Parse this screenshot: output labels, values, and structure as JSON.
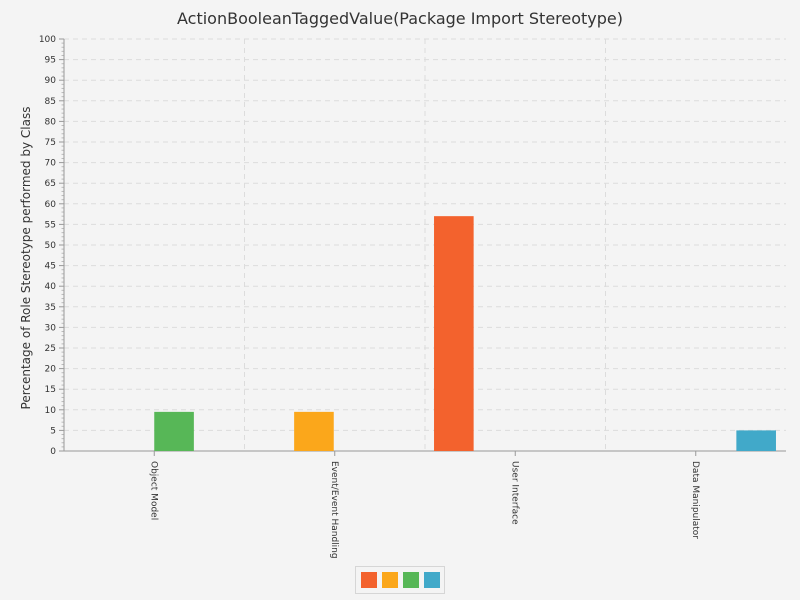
{
  "chart_data": {
    "type": "bar",
    "title": "ActionBooleanTaggedValue(Package Import Stereotype)",
    "xlabel": "",
    "ylabel": "Percentage of Role Stereotype performed by Class",
    "ylim": [
      0,
      100
    ],
    "ytick_step": 5,
    "grid": true,
    "legend_position": "bottom-center",
    "categories": [
      "Object Model",
      "Event/Event Handling",
      "User Interface",
      "Data Manipulator"
    ],
    "series": [
      {
        "color": "#f3622d",
        "values": [
          0,
          0,
          57,
          0
        ]
      },
      {
        "color": "#fba71b",
        "values": [
          0,
          9.5,
          0,
          0
        ]
      },
      {
        "color": "#57b757",
        "values": [
          9.5,
          0,
          0,
          0
        ]
      },
      {
        "color": "#41a9c9",
        "values": [
          0,
          0,
          0,
          5
        ]
      }
    ]
  }
}
